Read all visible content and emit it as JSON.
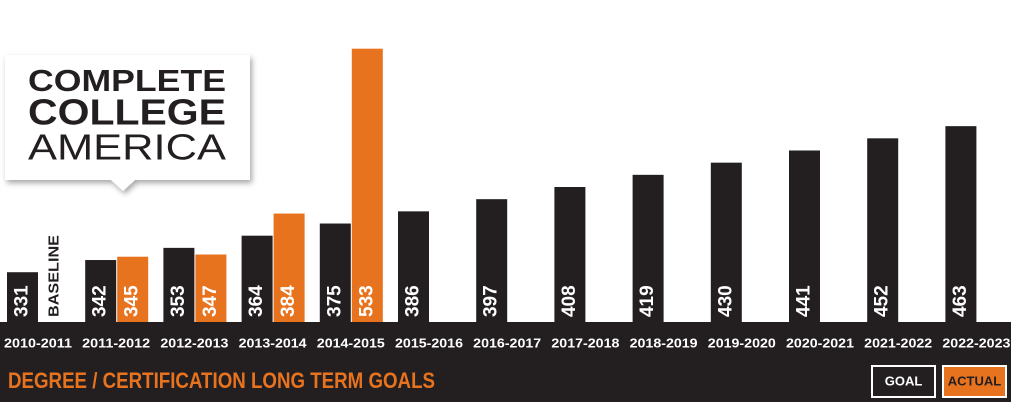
{
  "logo": {
    "lines": [
      "COMPLETE",
      "COLLEGE",
      "AMERICA"
    ]
  },
  "chart_data": {
    "type": "bar",
    "title": "DEGREE / CERTIFICATION LONG TERM GOALS",
    "categories": [
      "2010-2011",
      "2011-2012",
      "2012-2013",
      "2013-2014",
      "2014-2015",
      "2015-2016",
      "2016-2017",
      "2017-2018",
      "2018-2019",
      "2019-2020",
      "2020-2021",
      "2021-2022",
      "2022-2023"
    ],
    "series": [
      {
        "name": "GOAL",
        "color": "#231f20",
        "values": [
          331,
          342,
          353,
          364,
          375,
          386,
          397,
          408,
          419,
          430,
          441,
          452,
          463
        ]
      },
      {
        "name": "ACTUAL",
        "color": "#e8731f",
        "values": [
          null,
          345,
          347,
          384,
          533,
          null,
          null,
          null,
          null,
          null,
          null,
          null,
          null
        ]
      }
    ],
    "annotation": "BASELINE",
    "ylim": [
      286,
      577
    ]
  }
}
